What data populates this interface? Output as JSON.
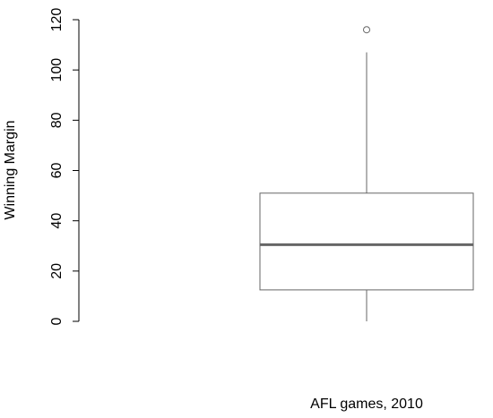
{
  "chart_data": {
    "type": "box",
    "y_label": "Winning Margin",
    "x_label": "AFL games, 2010",
    "ylim": [
      0,
      120
    ],
    "yticks": [
      0,
      20,
      40,
      60,
      80,
      100,
      120
    ],
    "whisker_low": 0,
    "q1": 12.5,
    "median": 30.5,
    "q3": 51,
    "whisker_high": 107,
    "outliers": [
      116
    ],
    "color": "#ffffff"
  }
}
